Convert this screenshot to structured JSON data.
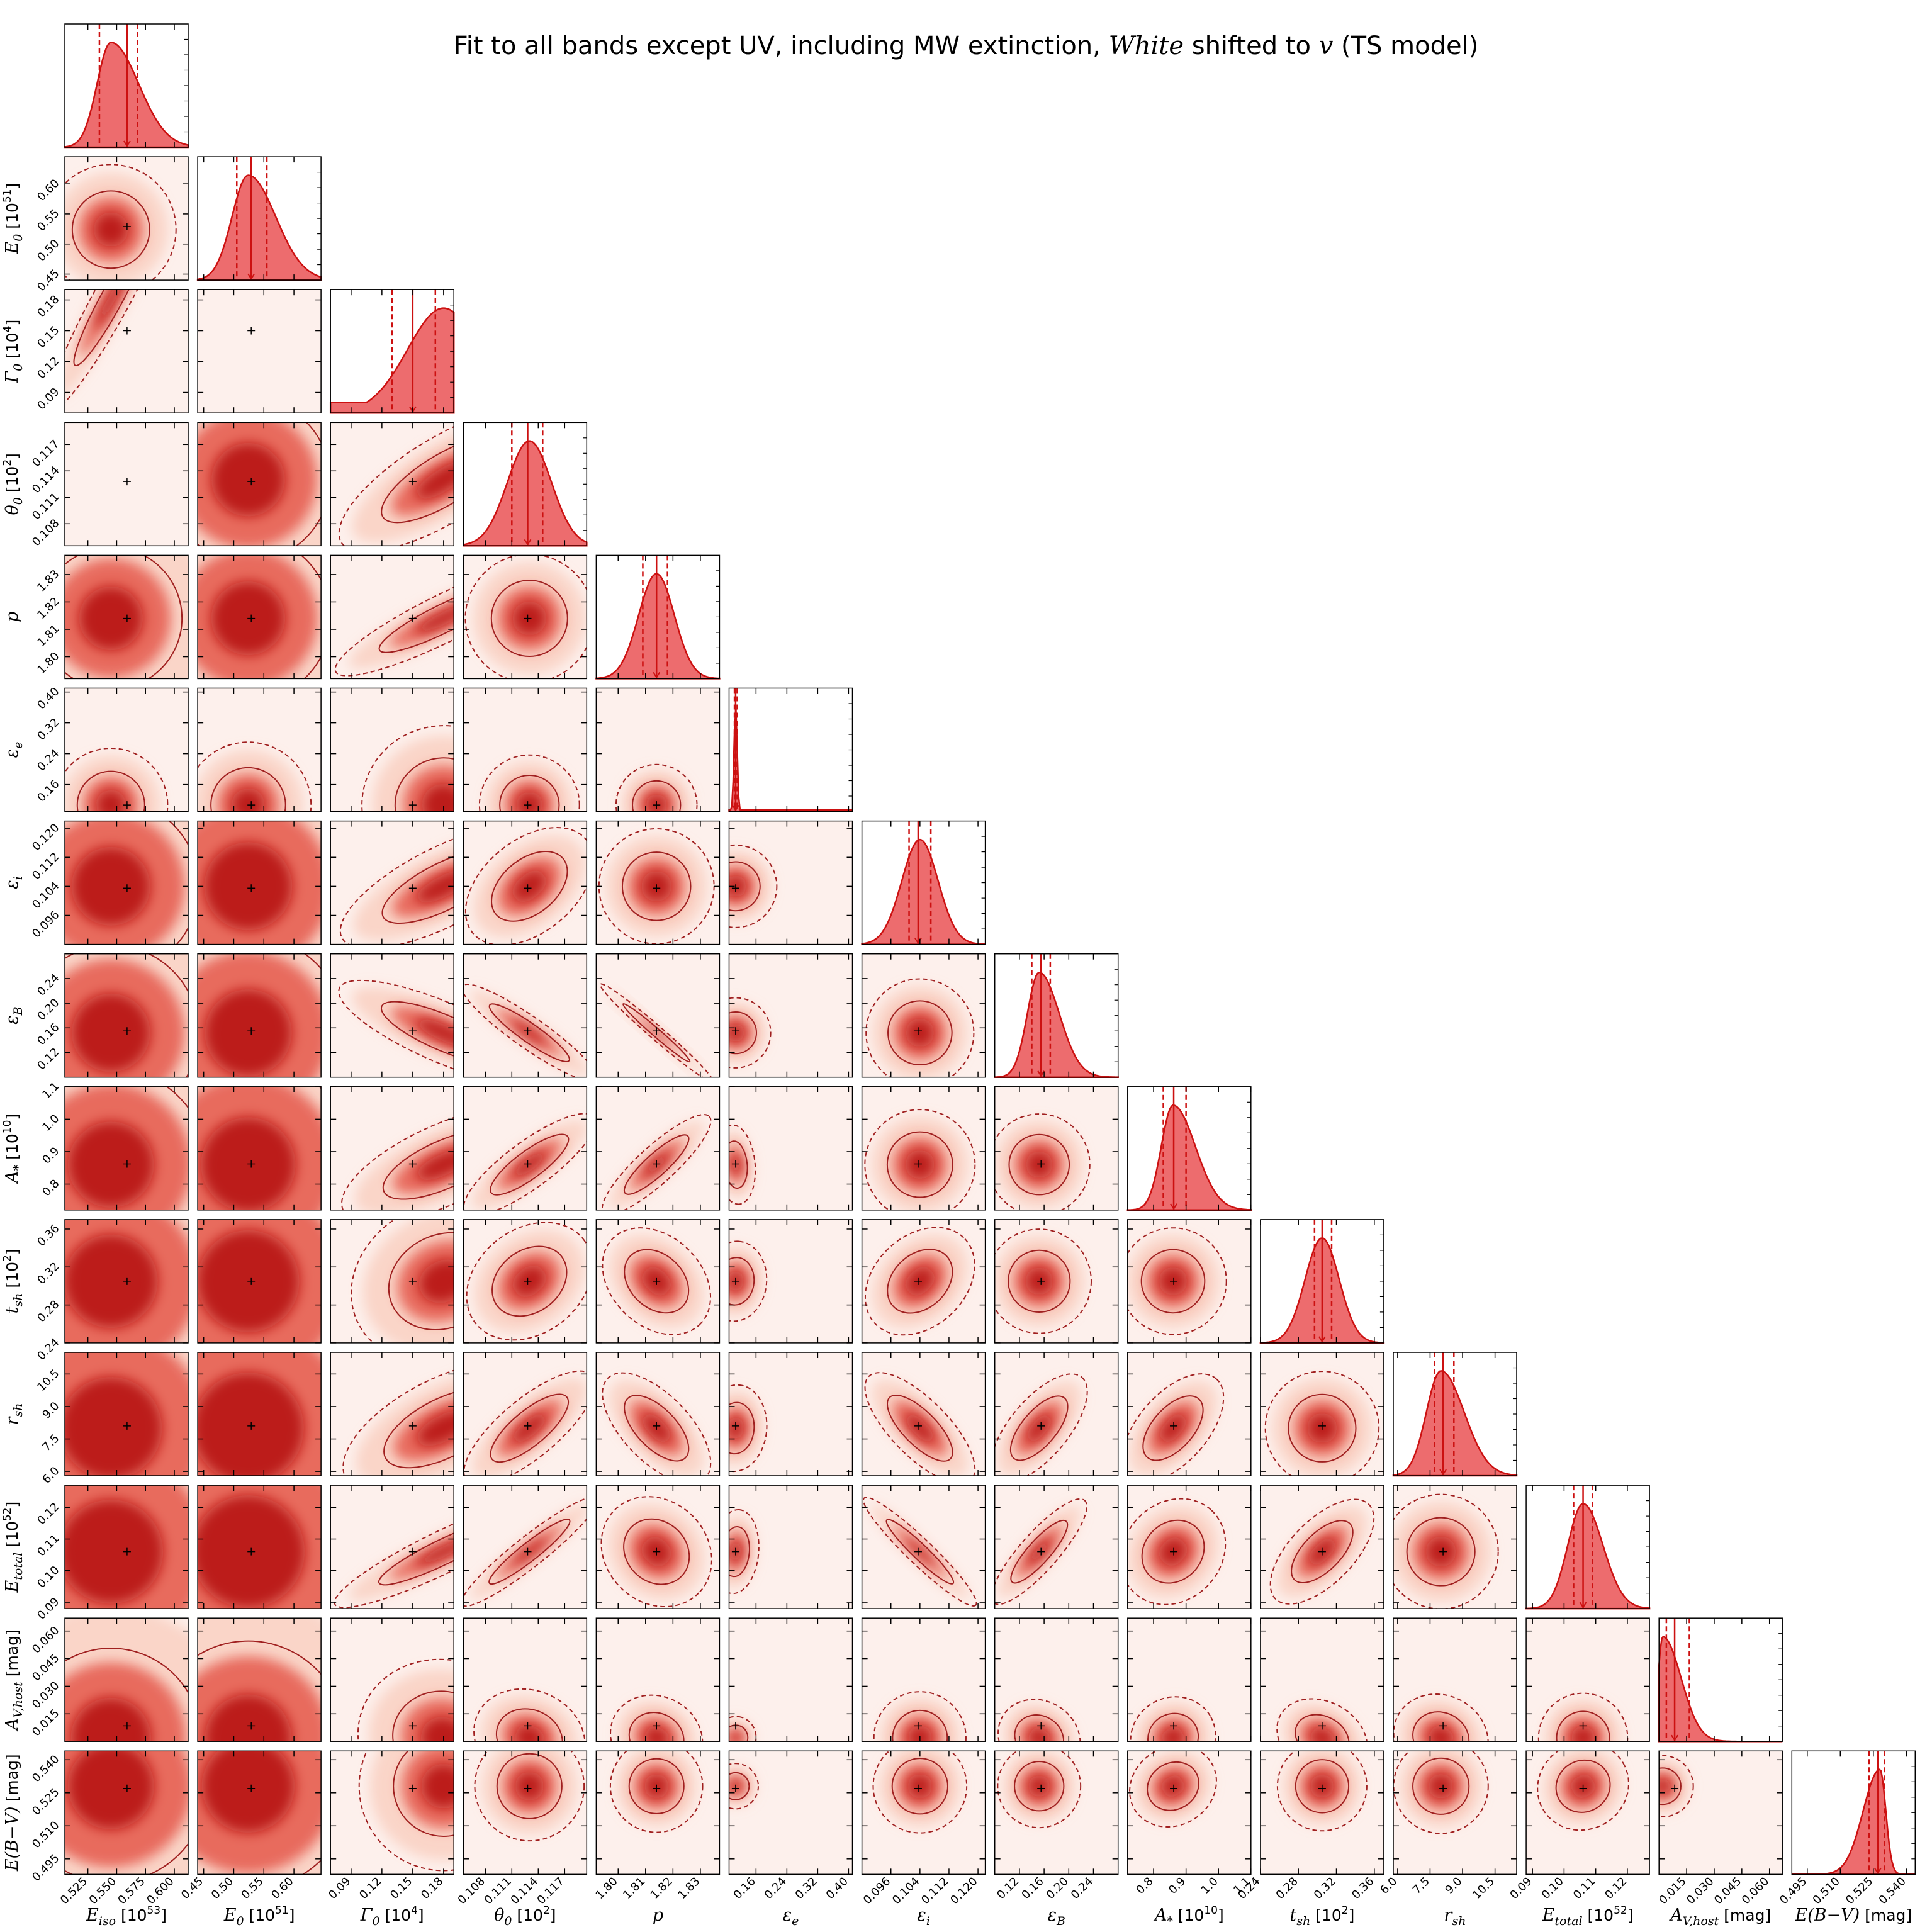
{
  "title": "Fit to all bands except UV, including MW extinction, White shifted to v (TS model)",
  "title_parts": {
    "before": "Fit to all bands except UV, including MW extinction, ",
    "italic1": "White",
    "middle": " shifted to ",
    "italic2": "v",
    "after": " (TS model)"
  },
  "chart_data": {
    "type": "corner",
    "grid": false,
    "colors": {
      "fill": "#e8474a",
      "line": "#cc1111",
      "contour": "#a02020",
      "density": "#b40e0e"
    },
    "params": [
      {
        "label": "E_iso [10^53]",
        "lo": 0.505,
        "hi": 0.612,
        "ticks": [
          0.525,
          0.55,
          0.575,
          0.6
        ],
        "tick_labels": [
          "0.525",
          "0.550",
          "0.575",
          "0.600"
        ],
        "median": 0.559,
        "q16": 0.535,
        "q84": 0.568,
        "sd": 0.017,
        "peak": 0.545,
        "skew": 2.0
      },
      {
        "label": "E_0 [10^51]",
        "lo": 0.44,
        "hi": 0.645,
        "ticks": [
          0.45,
          0.5,
          0.55,
          0.6
        ],
        "tick_labels": [
          "0.45",
          "0.50",
          "0.55",
          "0.60"
        ],
        "median": 0.529,
        "q16": 0.505,
        "q84": 0.555,
        "sd": 0.035,
        "peak": 0.524,
        "skew": 1.7
      },
      {
        "label": "Γ_0 [10^4]",
        "lo": 0.07,
        "hi": 0.19,
        "ticks": [
          0.09,
          0.12,
          0.15,
          0.18
        ],
        "tick_labels": [
          "0.09",
          "0.12",
          "0.15",
          "0.18"
        ],
        "median": 0.15,
        "q16": 0.13,
        "q84": 0.172,
        "sd": 0.035,
        "peak": 0.18,
        "skew": 1.0,
        "tail": 0.1
      },
      {
        "label": "θ_0 [10^2]",
        "lo": 0.1055,
        "hi": 0.1195,
        "ticks": [
          0.108,
          0.111,
          0.114,
          0.117
        ],
        "tick_labels": [
          "0.108",
          "0.111",
          "0.114",
          "0.117"
        ],
        "median": 0.1128,
        "q16": 0.111,
        "q84": 0.1145,
        "sd": 0.0025,
        "peak": 0.113,
        "skew": 1.0
      },
      {
        "label": "p",
        "lo": 1.792,
        "hi": 1.837,
        "ticks": [
          1.8,
          1.81,
          1.82,
          1.83
        ],
        "tick_labels": [
          "1.80",
          "1.81",
          "1.82",
          "1.83"
        ],
        "median": 1.814,
        "q16": 1.809,
        "q84": 1.818,
        "sd": 0.0065,
        "peak": 1.814,
        "skew": 1.0
      },
      {
        "label": "ε_e",
        "lo": 0.09,
        "hi": 0.41,
        "ticks": [
          0.16,
          0.24,
          0.32,
          0.4
        ],
        "tick_labels": [
          "0.16",
          "0.24",
          "0.32",
          "0.40"
        ],
        "median": 0.107,
        "q16": 0.104,
        "q84": 0.111,
        "sd": 0.004,
        "peak": 0.107,
        "skew": 1.0,
        "tail": 0.015
      },
      {
        "label": "ε_i",
        "lo": 0.088,
        "hi": 0.122,
        "ticks": [
          0.096,
          0.104,
          0.112,
          0.12
        ],
        "tick_labels": [
          "0.096",
          "0.104",
          "0.112",
          "0.120"
        ],
        "median": 0.1035,
        "q16": 0.101,
        "q84": 0.107,
        "sd": 0.005,
        "peak": 0.104,
        "skew": 1.0
      },
      {
        "label": "ε_B",
        "lo": 0.08,
        "hi": 0.28,
        "ticks": [
          0.12,
          0.16,
          0.2,
          0.24
        ],
        "tick_labels": [
          "0.12",
          "0.16",
          "0.20",
          "0.24"
        ],
        "median": 0.155,
        "q16": 0.14,
        "q84": 0.17,
        "sd": 0.025,
        "peak": 0.152,
        "skew": 1.7
      },
      {
        "label": "A_* [10^10]",
        "lo": 0.72,
        "hi": 1.1,
        "ticks": [
          0.8,
          0.9,
          1.0,
          1.1
        ],
        "tick_labels": [
          "0.8",
          "0.9",
          "1.0",
          "1.1"
        ],
        "median": 0.862,
        "q16": 0.83,
        "q84": 0.9,
        "sd": 0.05,
        "peak": 0.86,
        "skew": 1.9
      },
      {
        "label": "t_sh [10^2]",
        "lo": 0.24,
        "hi": 0.37,
        "ticks": [
          0.24,
          0.28,
          0.32,
          0.36
        ],
        "tick_labels": [
          "0.24",
          "0.28",
          "0.32",
          "0.36"
        ],
        "median": 0.305,
        "q16": 0.297,
        "q84": 0.315,
        "sd": 0.018,
        "peak": 0.305,
        "skew": 1.0
      },
      {
        "label": "r_sh",
        "lo": 5.8,
        "hi": 11.5,
        "ticks": [
          6.0,
          7.5,
          9.0,
          10.5
        ],
        "tick_labels": [
          "6.0",
          "7.5",
          "9.0",
          "10.5"
        ],
        "median": 8.1,
        "q16": 7.7,
        "q84": 8.6,
        "sd": 0.85,
        "peak": 8.0,
        "skew": 1.6
      },
      {
        "label": "E_total [10^52]",
        "lo": 0.088,
        "hi": 0.127,
        "ticks": [
          0.09,
          0.1,
          0.11,
          0.12
        ],
        "tick_labels": [
          "0.09",
          "0.10",
          "0.11",
          "0.12"
        ],
        "median": 0.106,
        "q16": 0.103,
        "q84": 0.109,
        "sd": 0.0055,
        "peak": 0.106,
        "skew": 1.3
      },
      {
        "label": "A_V,host [mag]",
        "lo": 0.0,
        "hi": 0.067,
        "ticks": [
          0.015,
          0.03,
          0.045,
          0.06
        ],
        "tick_labels": [
          "0.015",
          "0.030",
          "0.045",
          "0.060"
        ],
        "median": 0.0085,
        "q16": 0.004,
        "q84": 0.0165,
        "sd": 0.005,
        "peak": 0.002,
        "skew": 4.0
      },
      {
        "label": "E(B−V) [mag]",
        "lo": 0.488,
        "hi": 0.544,
        "ticks": [
          0.495,
          0.51,
          0.525,
          0.54
        ],
        "tick_labels": [
          "0.495",
          "0.510",
          "0.525",
          "0.540"
        ],
        "median": 0.527,
        "q16": 0.523,
        "q84": 0.53,
        "sd": 0.0045,
        "peak": 0.528,
        "skew": 0.35
      }
    ],
    "correlations": [
      [
        0,
        0,
        1,
        2,
        0.88
      ],
      [
        0,
        0,
        2,
        3,
        0.65
      ],
      [
        0,
        0,
        3,
        4,
        0.95
      ],
      [
        0,
        0,
        4,
        5,
        0.05,
        0.0
      ],
      [
        0,
        0,
        5,
        6,
        0.7,
        0.3
      ],
      [
        0,
        0,
        6,
        7,
        -0.88,
        -0.85,
        -0.95
      ],
      [
        0,
        0,
        7,
        8,
        0.7,
        0.7,
        0.72,
        -0.85
      ],
      [
        0,
        0,
        8,
        9,
        0.15,
        0.18,
        -0.2,
        0.35,
        0.2
      ],
      [
        0,
        0,
        9,
        10,
        0.55,
        0.6,
        -0.45,
        0.45,
        -0.55,
        0.5,
        0.4
      ],
      [
        0,
        0,
        10,
        11,
        1.0,
        0.85,
        -0.1,
        0.75,
        -0.85,
        0.7,
        0.1,
        0.45
      ],
      [
        0,
        0,
        11,
        12,
        -0.1,
        -0.15,
        -0.1,
        0.05,
        0.0,
        -0.1,
        0.05,
        -0.2,
        -0.1,
        0.0,
        -0.1
      ],
      [
        0,
        0,
        12,
        13,
        0.0,
        0.0,
        0.0,
        0.0,
        0.0,
        0.0,
        0.1,
        0.0,
        0.0,
        0.05,
        0.0,
        -0.75
      ]
    ]
  }
}
